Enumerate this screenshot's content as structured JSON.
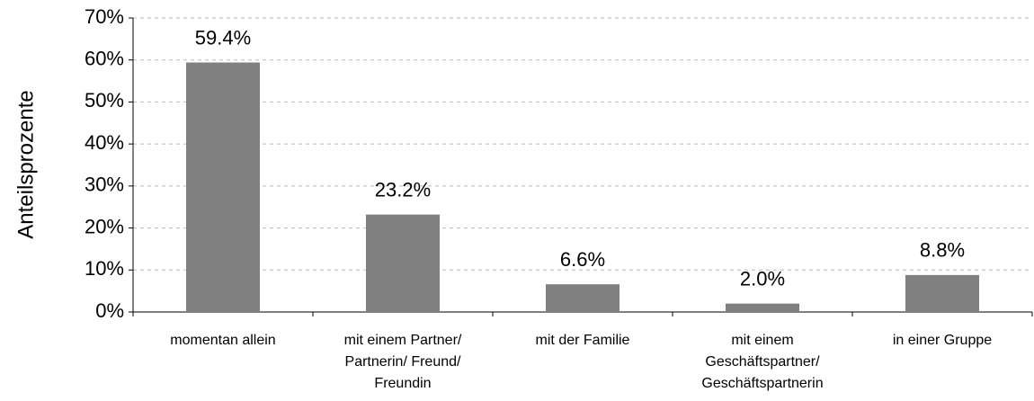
{
  "chart_data": {
    "type": "bar",
    "y_label": "Anteilsprozente",
    "categories": [
      "momentan allein",
      "mit einem Partner/ Partnerin/ Freund/ Freundin",
      "mit der Familie",
      "mit einem Geschäftspartner/ Geschäftspartnerin",
      "in einer Gruppe"
    ],
    "values": [
      59.4,
      23.2,
      6.6,
      2.0,
      8.8
    ],
    "value_labels": [
      "59.4%",
      "23.2%",
      "6.6%",
      "2.0%",
      "8.8%"
    ],
    "color": "#808080",
    "ylim": [
      0,
      70
    ],
    "yticks": [
      {
        "value": 0,
        "label": "0%"
      },
      {
        "value": 10,
        "label": "10%"
      },
      {
        "value": 20,
        "label": "20%"
      },
      {
        "value": 30,
        "label": "30%"
      },
      {
        "value": 40,
        "label": "40%"
      },
      {
        "value": 50,
        "label": "50%"
      },
      {
        "value": 60,
        "label": "60%"
      },
      {
        "value": 70,
        "label": "70%"
      }
    ],
    "grid": true
  }
}
